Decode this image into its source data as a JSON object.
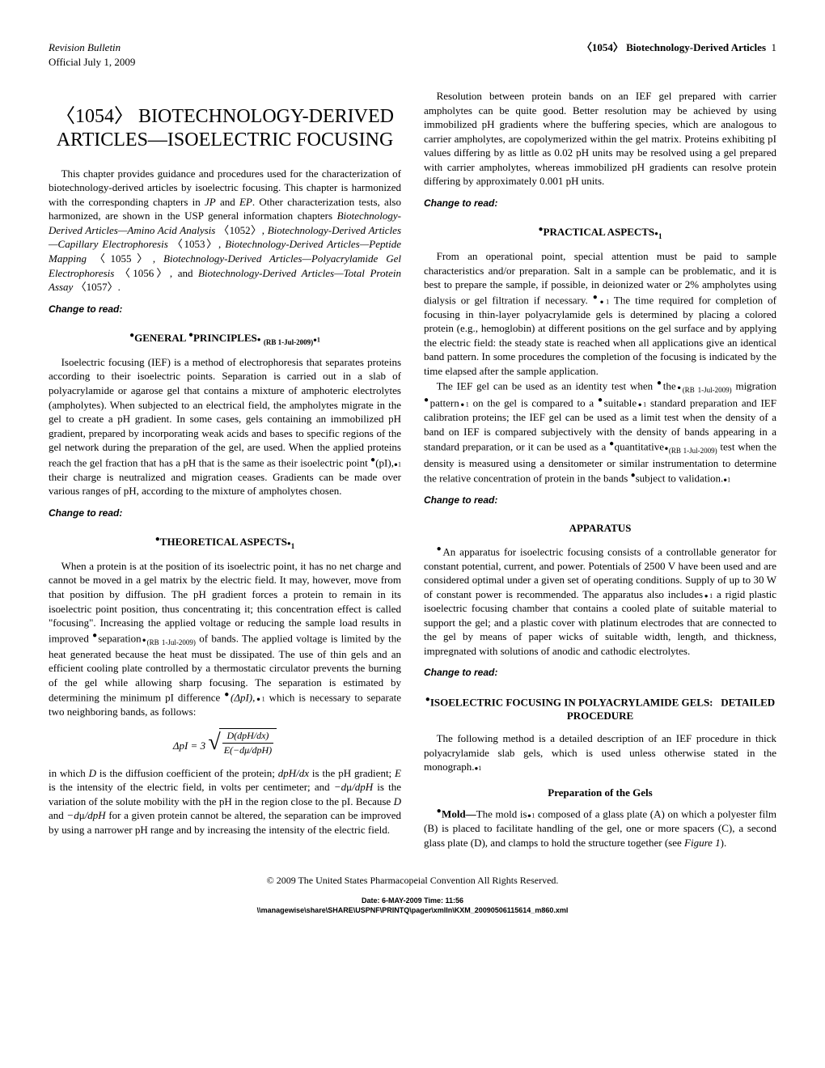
{
  "header": {
    "revision": "Revision Bulletin",
    "official": "Official July 1, 2009",
    "right": "〈1054〉 Biotechnology-Derived Articles",
    "page": "1"
  },
  "title": "〈1054〉 BIOTECHNOLOGY-DERIVED ARTICLES—ISOELECTRIC FOCUSING",
  "intro": "This chapter provides guidance and procedures used for the characterization of biotechnology-derived articles by isoelectric focusing. This chapter is harmonized with the corresponding chapters in JP and EP. Other characterization tests, also harmonized, are shown in the USP general information chapters Biotechnology-Derived Articles—Amino Acid Analysis 〈1052〉, Biotechnology-Derived Articles—Capillary Electrophoresis 〈1053〉, Biotechnology-Derived Articles—Peptide Mapping 〈1055〉, Biotechnology-Derived Articles—Polyacrylamide Gel Electrophoresis 〈1056〉, and Biotechnology-Derived Articles—Total Protein Assay 〈1057〉.",
  "change": "Change to read:",
  "sections": {
    "general_principles": {
      "heading": "GENERAL PRINCIPLES",
      "heading_sub": "(RB 1-Jul-2009)",
      "p1": "Isoelectric focusing (IEF) is a method of electrophoresis that separates proteins according to their isoelectric points. Separation is carried out in a slab of polyacrylamide or agarose gel that contains a mixture of amphoteric electrolytes (ampholytes). When subjected to an electrical field, the ampholytes migrate in the gel to create a pH gradient. In some cases, gels containing an immobilized pH gradient, prepared by incorporating weak acids and bases to specific regions of the gel network during the preparation of the gel, are used. When the applied proteins reach the gel fraction that has a pH that is the same as their isoelectric point (pI), their charge is neutralized and migration ceases. Gradients can be made over various ranges of pH, according to the mixture of ampholytes chosen."
    },
    "theoretical": {
      "heading": "THEORETICAL ASPECTS",
      "p1": "When a protein is at the position of its isoelectric point, it has no net charge and cannot be moved in a gel matrix by the electric field. It may, however, move from that position by diffusion. The pH gradient forces a protein to remain in its isoelectric point position, thus concentrating it; this concentration effect is called \"focusing\". Increasing the applied voltage or reducing the sample load results in improved separation of bands. The applied voltage is limited by the heat generated because the heat must be dissipated. The use of thin gels and an efficient cooling plate controlled by a thermostatic circulator prevents the burning of the gel while allowing sharp focusing. The separation is estimated by determining the minimum pI difference (ΔpI), which is necessary to separate two neighboring bands, as follows:",
      "formula_lhs": "ΔpI = 3",
      "formula_num": "D(dpH/dx)",
      "formula_den": "E(−dμ/dpH)",
      "p2": "in which D is the diffusion coefficient of the protein; dpH/dx is the pH gradient; E is the intensity of the electric field, in volts per centimeter; and −dμ/dpH is the variation of the solute mobility with the pH in the region close to the pI. Because D and −dμ/dpH for a given protein cannot be altered, the separation can be improved by using a narrower pH range and by increasing the intensity of the electric field.",
      "p3": "Resolution between protein bands on an IEF gel prepared with carrier ampholytes can be quite good. Better resolution may be achieved by using immobilized pH gradients where the buffering species, which are analogous to carrier ampholytes, are copolymerized within the gel matrix. Proteins exhibiting pI values differing by as little as 0.02 pH units may be resolved using a gel prepared with carrier ampholytes, whereas immobilized pH gradients can resolve protein differing by approximately 0.001 pH units."
    },
    "practical": {
      "heading": "PRACTICAL ASPECTS",
      "p1": "From an operational point, special attention must be paid to sample characteristics and/or preparation. Salt in a sample can be problematic, and it is best to prepare the sample, if possible, in deionized water or 2% ampholytes using dialysis or gel filtration if necessary. The time required for completion of focusing in thin-layer polyacrylamide gels is determined by placing a colored protein (e.g., hemoglobin) at different positions on the gel surface and by applying the electric field: the steady state is reached when all applications give an identical band pattern. In some procedures the completion of the focusing is indicated by the time elapsed after the sample application.",
      "p2": "The IEF gel can be used as an identity test when the migration pattern on the gel is compared to a suitable standard preparation and IEF calibration proteins; the IEF gel can be used as a limit test when the density of a band on IEF is compared subjectively with the density of bands appearing in a standard preparation, or it can be used as a quantitative test when the density is measured using a densitometer or similar instrumentation to determine the relative concentration of protein in the bands subject to validation."
    },
    "apparatus": {
      "heading": "APPARATUS",
      "p1": "An apparatus for isoelectric focusing consists of a controllable generator for constant potential, current, and power. Potentials of 2500 V have been used and are considered optimal under a given set of operating conditions. Supply of up to 30 W of constant power is recommended. The apparatus also includes a rigid plastic isoelectric focusing chamber that contains a cooled plate of suitable material to support the gel; and a plastic cover with platinum electrodes that are connected to the gel by means of paper wicks of suitable width, length, and thickness, impregnated with solutions of anodic and cathodic electrolytes."
    },
    "detailed": {
      "heading": "ISOELECTRIC FOCUSING IN POLYACRYLAMIDE GELS:   DETAILED PROCEDURE",
      "p1": "The following method is a detailed description of an IEF procedure in thick polyacrylamide slab gels, which is used unless otherwise stated in the monograph."
    },
    "prep": {
      "heading": "Preparation of the Gels",
      "mold_label": "Mold—",
      "mold_text": "The mold is composed of a glass plate (A) on which a polyester film (B) is placed to facilitate handling of the gel, one or more spacers (C), a second glass plate (D), and clamps to hold the structure together (see Figure 1)."
    }
  },
  "footer": {
    "copyright": "© 2009 The United States Pharmacopeial Convention   All Rights Reserved.",
    "date": "Date:  6-MAY-2009   Time:  11:56",
    "path": "\\\\managewise\\share\\SHARE\\USPNF\\PRINTQ\\pager\\xmlIn\\KXM_20090506115614_m860.xml"
  }
}
